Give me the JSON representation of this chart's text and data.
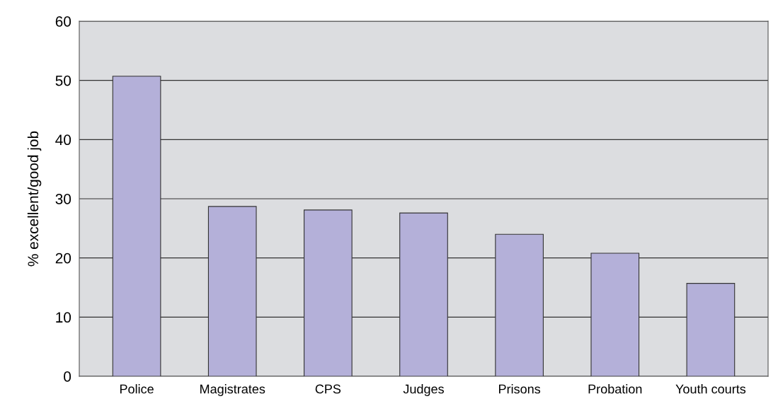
{
  "chart_data": {
    "type": "bar",
    "ylabel": "% excellent/good job",
    "categories": [
      "Police",
      "Magistrates",
      "CPS",
      "Judges",
      "Prisons",
      "Probation",
      "Youth courts"
    ],
    "values": [
      50.7,
      28.7,
      28.1,
      27.6,
      24.0,
      20.8,
      15.7
    ],
    "color": "#b4b0d9",
    "ylim": [
      0,
      60
    ],
    "yticks": [
      0,
      10,
      20,
      30,
      40,
      50,
      60
    ],
    "grid": "y"
  }
}
